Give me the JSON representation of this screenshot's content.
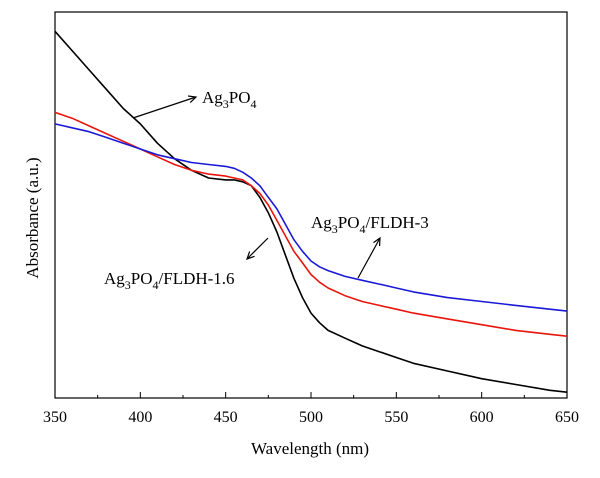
{
  "chart_data": {
    "type": "line",
    "title": "",
    "xlabel": "Wavelength (nm)",
    "ylabel": "Absorbance (a.u.)",
    "xlim": [
      350,
      650
    ],
    "ylim": [
      0,
      1
    ],
    "x_ticks": [
      "350",
      "400",
      "450",
      "500",
      "550",
      "600",
      "650"
    ],
    "y_ticks_shown": false,
    "grid": false,
    "legend": "none",
    "series": [
      {
        "name": "Ag3PO4",
        "color": "#000000",
        "x": [
          350,
          360,
          370,
          380,
          390,
          400,
          410,
          420,
          430,
          440,
          450,
          455,
          460,
          465,
          470,
          475,
          480,
          485,
          490,
          495,
          500,
          505,
          510,
          520,
          530,
          540,
          550,
          560,
          580,
          600,
          620,
          640,
          650
        ],
        "y": [
          0.95,
          0.9,
          0.85,
          0.8,
          0.75,
          0.71,
          0.66,
          0.62,
          0.59,
          0.57,
          0.565,
          0.565,
          0.56,
          0.55,
          0.52,
          0.48,
          0.43,
          0.37,
          0.31,
          0.26,
          0.22,
          0.195,
          0.175,
          0.155,
          0.135,
          0.12,
          0.105,
          0.09,
          0.07,
          0.05,
          0.035,
          0.02,
          0.015
        ]
      },
      {
        "name": "Ag3PO4/FLDH-1.6",
        "color": "#e8150c",
        "x": [
          350,
          360,
          370,
          380,
          390,
          400,
          410,
          420,
          430,
          440,
          450,
          455,
          460,
          465,
          470,
          475,
          480,
          485,
          490,
          495,
          500,
          505,
          510,
          520,
          530,
          540,
          550,
          560,
          580,
          600,
          620,
          640,
          650
        ],
        "y": [
          0.74,
          0.725,
          0.705,
          0.685,
          0.665,
          0.645,
          0.625,
          0.605,
          0.59,
          0.58,
          0.575,
          0.57,
          0.565,
          0.55,
          0.53,
          0.5,
          0.46,
          0.42,
          0.38,
          0.35,
          0.32,
          0.3,
          0.285,
          0.265,
          0.25,
          0.24,
          0.23,
          0.22,
          0.205,
          0.19,
          0.175,
          0.165,
          0.16
        ]
      },
      {
        "name": "Ag3PO4/FLDH-3",
        "color": "#1a1ad6",
        "x": [
          350,
          360,
          370,
          380,
          390,
          400,
          410,
          420,
          430,
          440,
          450,
          455,
          460,
          465,
          470,
          475,
          480,
          485,
          490,
          495,
          500,
          505,
          510,
          520,
          530,
          540,
          550,
          560,
          580,
          600,
          620,
          640,
          650
        ],
        "y": [
          0.71,
          0.7,
          0.69,
          0.675,
          0.66,
          0.645,
          0.63,
          0.62,
          0.61,
          0.605,
          0.6,
          0.595,
          0.585,
          0.57,
          0.55,
          0.52,
          0.49,
          0.45,
          0.41,
          0.38,
          0.355,
          0.34,
          0.33,
          0.315,
          0.305,
          0.295,
          0.285,
          0.275,
          0.26,
          0.25,
          0.24,
          0.23,
          0.225
        ]
      }
    ],
    "annotations": [
      {
        "base": "Ag",
        "sub1": "3",
        "mid": "PO",
        "sub2": "4",
        "tail": ""
      },
      {
        "base": "Ag",
        "sub1": "3",
        "mid": "PO",
        "sub2": "4",
        "tail": "/FLDH-3"
      },
      {
        "base": "Ag",
        "sub1": "3",
        "mid": "PO",
        "sub2": "4",
        "tail": "/FLDH-1.6"
      }
    ]
  }
}
